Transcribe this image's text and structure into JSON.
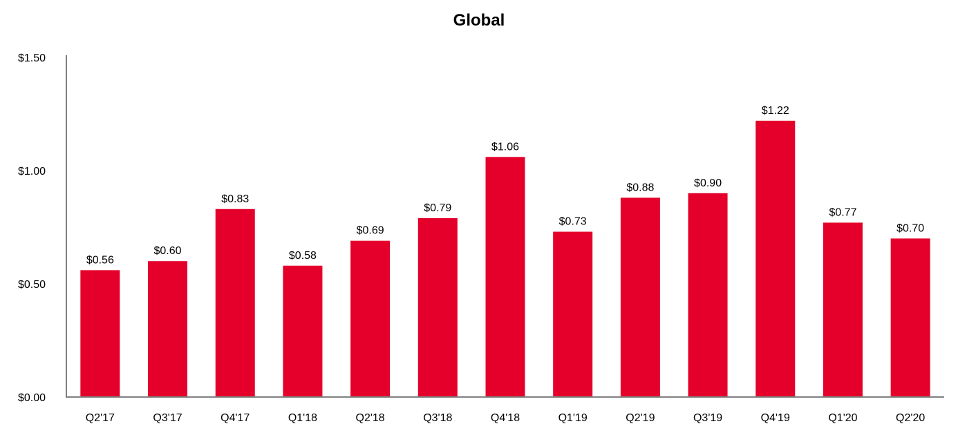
{
  "chart_data": {
    "type": "bar",
    "title": "Global",
    "xlabel": "",
    "ylabel": "",
    "ylim": [
      0,
      1.5
    ],
    "yticks": [
      0,
      0.5,
      1.0,
      1.5
    ],
    "ytick_labels": [
      "$0.00",
      "$0.50",
      "$1.00",
      "$1.50"
    ],
    "grid": false,
    "legend": "none",
    "categories": [
      "Q2'17",
      "Q3'17",
      "Q4'17",
      "Q1'18",
      "Q2'18",
      "Q3'18",
      "Q4'18",
      "Q1'19",
      "Q2'19",
      "Q3'19",
      "Q4'19",
      "Q1'20",
      "Q2'20"
    ],
    "values": [
      0.56,
      0.6,
      0.83,
      0.58,
      0.69,
      0.79,
      1.06,
      0.73,
      0.88,
      0.9,
      1.22,
      0.77,
      0.7
    ],
    "value_labels": [
      "$0.56",
      "$0.60",
      "$0.83",
      "$0.58",
      "$0.69",
      "$0.79",
      "$1.06",
      "$0.73",
      "$0.88",
      "$0.90",
      "$1.22",
      "$0.77",
      "$0.70"
    ],
    "bar_color": "#E4002B",
    "axis_color": "#808080"
  }
}
